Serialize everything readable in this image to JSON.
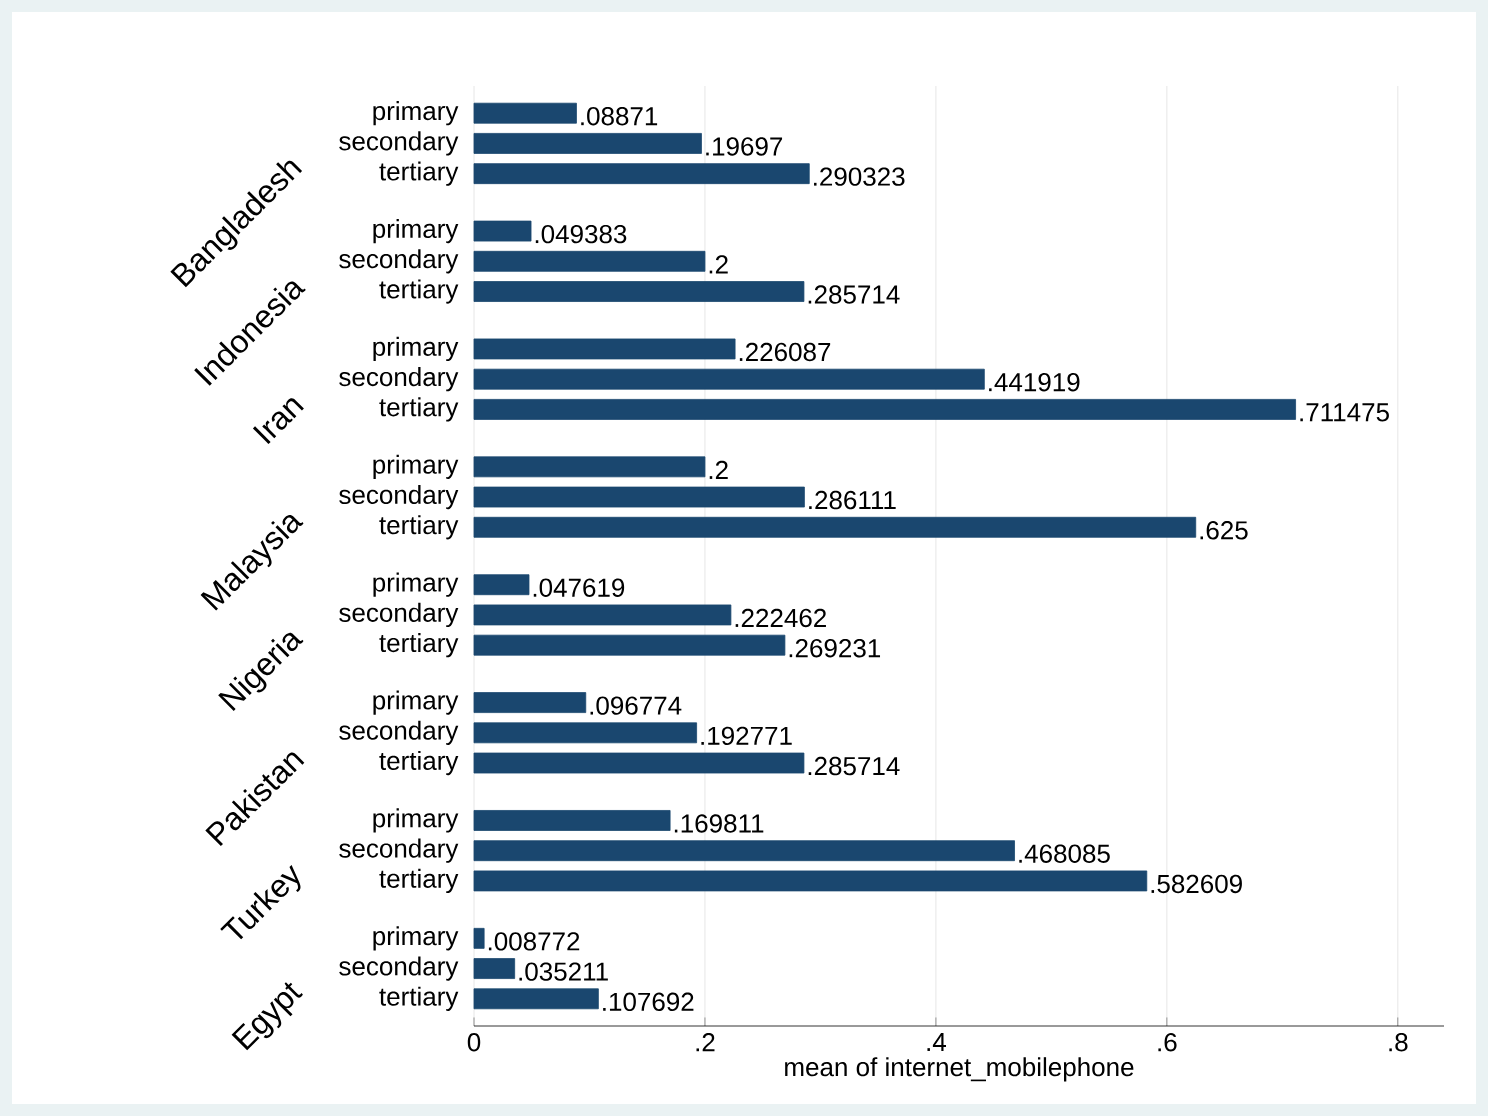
{
  "chart_data": {
    "type": "bar",
    "orientation": "horizontal",
    "xlabel": "mean of internet_mobilephone",
    "categories": [
      "primary",
      "secondary",
      "tertiary",
      "primary",
      "secondary",
      "tertiary",
      "primary",
      "secondary",
      "tertiary",
      "primary",
      "secondary",
      "tertiary",
      "primary",
      "secondary",
      "tertiary",
      "primary",
      "secondary",
      "tertiary",
      "primary",
      "secondary",
      "tertiary",
      "primary",
      "secondary",
      "tertiary"
    ],
    "values": [
      0.08871,
      0.19697,
      0.290323,
      0.049383,
      0.2,
      0.285714,
      0.226087,
      0.441919,
      0.711475,
      0.2,
      0.286111,
      0.625,
      0.047619,
      0.222462,
      0.269231,
      0.096774,
      0.192771,
      0.285714,
      0.169811,
      0.468085,
      0.582609,
      0.008772,
      0.035211,
      0.107692
    ],
    "value_labels": [
      ".08871",
      ".19697",
      ".290323",
      ".049383",
      ".2",
      ".285714",
      ".226087",
      ".441919",
      ".711475",
      ".2",
      ".286111",
      ".625",
      ".047619",
      ".222462",
      ".269231",
      ".096774",
      ".192771",
      ".285714",
      ".169811",
      ".468085",
      ".582609",
      ".008772",
      ".035211",
      ".107692"
    ],
    "annotations": [
      "Bangladesh",
      "Indonesia",
      "Iran",
      "Malaysia",
      "Nigeria",
      "Pakistan",
      "Turkey",
      "Egypt"
    ],
    "color": "#1a476f",
    "xlim": [
      0,
      0.84
    ],
    "xticks": [
      {
        "value": 0,
        "label": "0"
      },
      {
        "value": 0.2,
        "label": ".2"
      },
      {
        "value": 0.4,
        "label": ".4"
      },
      {
        "value": 0.6,
        "label": ".6"
      },
      {
        "value": 0.8,
        "label": ".8"
      }
    ],
    "grid": "x"
  }
}
